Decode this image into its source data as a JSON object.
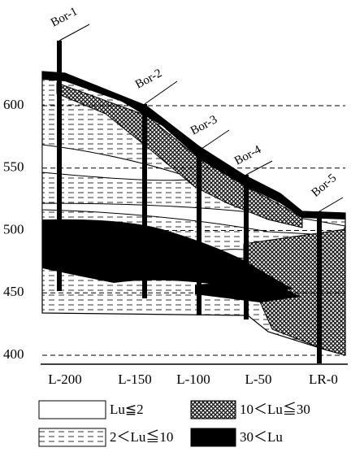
{
  "y_axis": {
    "ticks": [
      600,
      550,
      500,
      450,
      400
    ]
  },
  "x_axis": {
    "labels": [
      "L-200",
      "L-150",
      "L-100",
      "L-50",
      "LR-0"
    ]
  },
  "boreholes": [
    "Bor-1",
    "Bor-2",
    "Bor-3",
    "Bor-4",
    "Bor-5"
  ],
  "legend": [
    "Lu≦2",
    "2＜Lu≦10",
    "10＜Lu≦30",
    "30＜Lu"
  ]
}
